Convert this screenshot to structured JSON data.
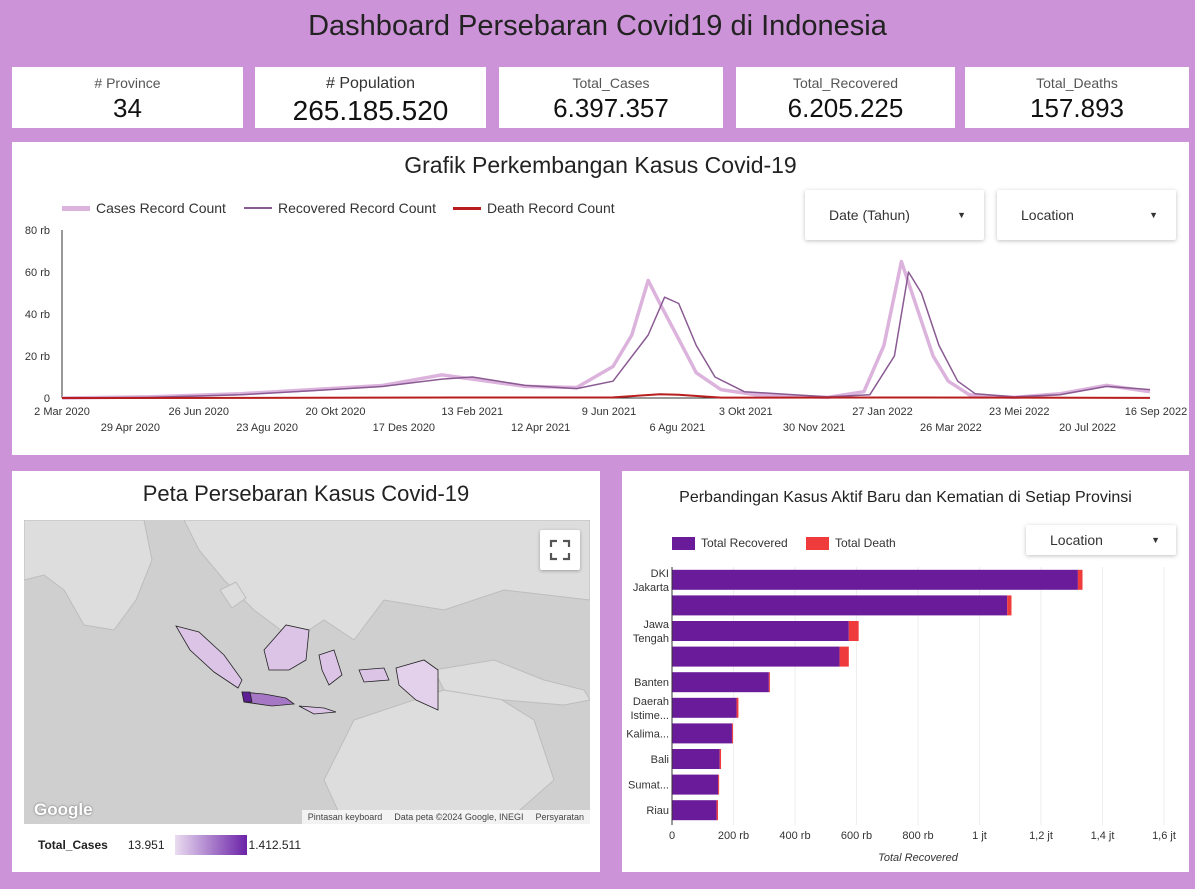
{
  "header": {
    "title": "Dashboard Persebaran Covid19 di Indonesia"
  },
  "kpis": [
    {
      "label": "# Province",
      "value": "34"
    },
    {
      "label": "# Population",
      "value": "265.185.520"
    },
    {
      "label": "Total_Cases",
      "value": "6.397.357"
    },
    {
      "label": "Total_Recovered",
      "value": "6.205.225"
    },
    {
      "label": "Total_Deaths",
      "value": "157.893"
    }
  ],
  "trend": {
    "title": "Grafik Perkembangan Kasus Covid-19",
    "legend": [
      {
        "label": "Cases Record Count",
        "color": "#dcb3dc"
      },
      {
        "label": "Recovered Record Count",
        "color": "#8a5a93"
      },
      {
        "label": "Death Record Count",
        "color": "#b81e1e"
      }
    ],
    "filters": {
      "date": "Date (Tahun)",
      "location": "Location"
    }
  },
  "map": {
    "title": "Peta Persebaran Kasus Covid-19",
    "google": "Google",
    "footer": [
      "Pintasan keyboard",
      "Data peta ©2024 Google, INEGI",
      "Persyaratan"
    ],
    "scale_label": "Total_Cases",
    "scale_min": "13.951",
    "scale_max": "1.412.511",
    "scale_colors": [
      "#eadcf0",
      "#6b22a8"
    ]
  },
  "bars": {
    "title": "Perbandingan Kasus Aktif Baru dan Kematian di Setiap Provinsi",
    "legend": [
      {
        "label": "Total Recovered",
        "color": "#6a1b9a"
      },
      {
        "label": "Total Death",
        "color": "#ef3b3b"
      }
    ],
    "filter": "Location"
  },
  "chart_data": [
    {
      "type": "line",
      "title": "Grafik Perkembangan Kasus Covid-19",
      "ylim": [
        0,
        80000
      ],
      "y_ticks": [
        "0",
        "20 rb",
        "40 rb",
        "60 rb",
        "80 rb"
      ],
      "x_ticks_top": [
        "2 Mar 2020",
        "26 Jun 2020",
        "20 Okt 2020",
        "13 Feb 2021",
        "9 Jun 2021",
        "3 Okt 2021",
        "27 Jan 2022",
        "23 Mei 2022",
        "16 Sep 2022"
      ],
      "x_ticks_bottom": [
        "29 Apr 2020",
        "23 Agu 2020",
        "17 Des 2020",
        "12 Apr 2021",
        "6 Agu 2021",
        "30 Nov 2021",
        "26 Mar 2022",
        "20 Jul 2022"
      ],
      "x_range": [
        "2020-03-02",
        "2022-09-16"
      ],
      "series": [
        {
          "name": "Cases Record Count",
          "points": [
            [
              "2020-03-02",
              0
            ],
            [
              "2020-05-15",
              500
            ],
            [
              "2020-08-01",
              2000
            ],
            [
              "2020-10-01",
              4000
            ],
            [
              "2020-12-01",
              6000
            ],
            [
              "2021-01-20",
              11000
            ],
            [
              "2021-02-15",
              9000
            ],
            [
              "2021-04-01",
              5500
            ],
            [
              "2021-05-15",
              5000
            ],
            [
              "2021-06-15",
              15000
            ],
            [
              "2021-07-01",
              30000
            ],
            [
              "2021-07-15",
              56000
            ],
            [
              "2021-07-25",
              45000
            ],
            [
              "2021-08-10",
              28000
            ],
            [
              "2021-08-25",
              12000
            ],
            [
              "2021-09-15",
              4000
            ],
            [
              "2021-10-15",
              1500
            ],
            [
              "2021-12-15",
              300
            ],
            [
              "2022-01-15",
              3000
            ],
            [
              "2022-02-01",
              25000
            ],
            [
              "2022-02-16",
              65000
            ],
            [
              "2022-02-28",
              45000
            ],
            [
              "2022-03-15",
              20000
            ],
            [
              "2022-03-28",
              8000
            ],
            [
              "2022-04-15",
              1500
            ],
            [
              "2022-05-23",
              300
            ],
            [
              "2022-07-01",
              2000
            ],
            [
              "2022-08-10",
              6000
            ],
            [
              "2022-09-16",
              3000
            ]
          ]
        },
        {
          "name": "Recovered Record Count",
          "points": [
            [
              "2020-03-02",
              0
            ],
            [
              "2020-05-15",
              300
            ],
            [
              "2020-08-01",
              1500
            ],
            [
              "2020-10-01",
              3500
            ],
            [
              "2020-12-01",
              5500
            ],
            [
              "2021-01-20",
              9000
            ],
            [
              "2021-02-15",
              10000
            ],
            [
              "2021-04-01",
              6000
            ],
            [
              "2021-05-15",
              4500
            ],
            [
              "2021-06-15",
              8000
            ],
            [
              "2021-07-15",
              30000
            ],
            [
              "2021-07-29",
              48000
            ],
            [
              "2021-08-10",
              45000
            ],
            [
              "2021-08-25",
              25000
            ],
            [
              "2021-09-10",
              10000
            ],
            [
              "2021-10-05",
              3000
            ],
            [
              "2021-12-15",
              500
            ],
            [
              "2022-01-20",
              1500
            ],
            [
              "2022-02-10",
              20000
            ],
            [
              "2022-02-22",
              60000
            ],
            [
              "2022-03-05",
              50000
            ],
            [
              "2022-03-20",
              25000
            ],
            [
              "2022-04-05",
              8000
            ],
            [
              "2022-04-20",
              2000
            ],
            [
              "2022-05-23",
              500
            ],
            [
              "2022-07-01",
              1500
            ],
            [
              "2022-08-10",
              5500
            ],
            [
              "2022-09-16",
              4000
            ]
          ]
        },
        {
          "name": "Death Record Count",
          "points": [
            [
              "2020-03-02",
              0
            ],
            [
              "2020-10-01",
              100
            ],
            [
              "2021-02-01",
              250
            ],
            [
              "2021-06-15",
              300
            ],
            [
              "2021-07-25",
              1800
            ],
            [
              "2021-08-10",
              1500
            ],
            [
              "2021-09-15",
              200
            ],
            [
              "2022-02-25",
              250
            ],
            [
              "2022-09-16",
              50
            ]
          ]
        }
      ]
    },
    {
      "type": "bar",
      "orientation": "horizontal",
      "stacked": true,
      "title": "Perbandingan Kasus Aktif Baru dan Kematian di Setiap Provinsi",
      "xlabel": "Total Recovered",
      "xlim": [
        0,
        1600000
      ],
      "x_ticks": [
        "0",
        "200 rb",
        "400 rb",
        "600 rb",
        "800 rb",
        "1 jt",
        "1,2 jt",
        "1,4 jt",
        "1,6 jt"
      ],
      "categories": [
        "DKI Jakarta",
        "",
        "Jawa Tengah",
        "",
        "Banten",
        "Daerah Istime...",
        "Kalima...",
        "Bali",
        "Sumat...",
        "Riau"
      ],
      "series": [
        {
          "name": "Total Recovered",
          "values": [
            1320000,
            1090000,
            575000,
            545000,
            315000,
            210000,
            195000,
            155000,
            150000,
            145000
          ]
        },
        {
          "name": "Total Death",
          "values": [
            15000,
            14000,
            32000,
            30000,
            3000,
            6000,
            2000,
            4500,
            3000,
            4500
          ]
        }
      ]
    }
  ]
}
